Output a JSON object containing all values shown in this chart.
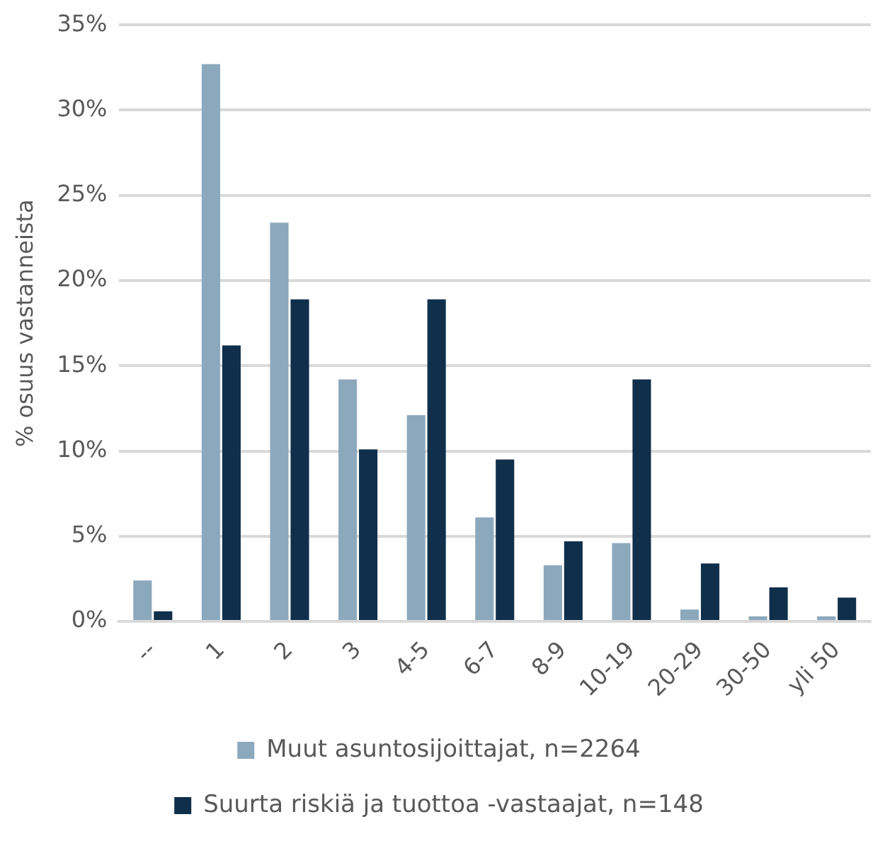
{
  "chart_data": {
    "type": "bar",
    "ylabel": "% osuus vastanneista",
    "categories": [
      "--",
      "1",
      "2",
      "3",
      "4-5",
      "6-7",
      "8-9",
      "10-19",
      "20-29",
      "30-50",
      "yli 50"
    ],
    "series": [
      {
        "name": "Muut asuntosijoittajat, n=2264",
        "color": "#8ca8bd",
        "values": [
          2.4,
          32.7,
          23.4,
          14.2,
          12.1,
          6.1,
          3.3,
          4.6,
          0.7,
          0.3,
          0.3
        ]
      },
      {
        "name": "Suurta riskiä ja tuottoa -vastaajat, n=148",
        "color": "#0f2f4a",
        "values": [
          0.6,
          16.2,
          18.9,
          10.1,
          18.9,
          9.5,
          4.7,
          14.2,
          3.4,
          2.0,
          1.4
        ]
      }
    ],
    "ylim": [
      0,
      35
    ],
    "yticks": [
      {
        "value": 0,
        "label": "0%"
      },
      {
        "value": 5,
        "label": "5%"
      },
      {
        "value": 10,
        "label": "10%"
      },
      {
        "value": 15,
        "label": "15%"
      },
      {
        "value": 20,
        "label": "20%"
      },
      {
        "value": 25,
        "label": "25%"
      },
      {
        "value": 30,
        "label": "30%"
      },
      {
        "value": 35,
        "label": "35%"
      }
    ],
    "grid": "y",
    "legend": "bottom"
  }
}
